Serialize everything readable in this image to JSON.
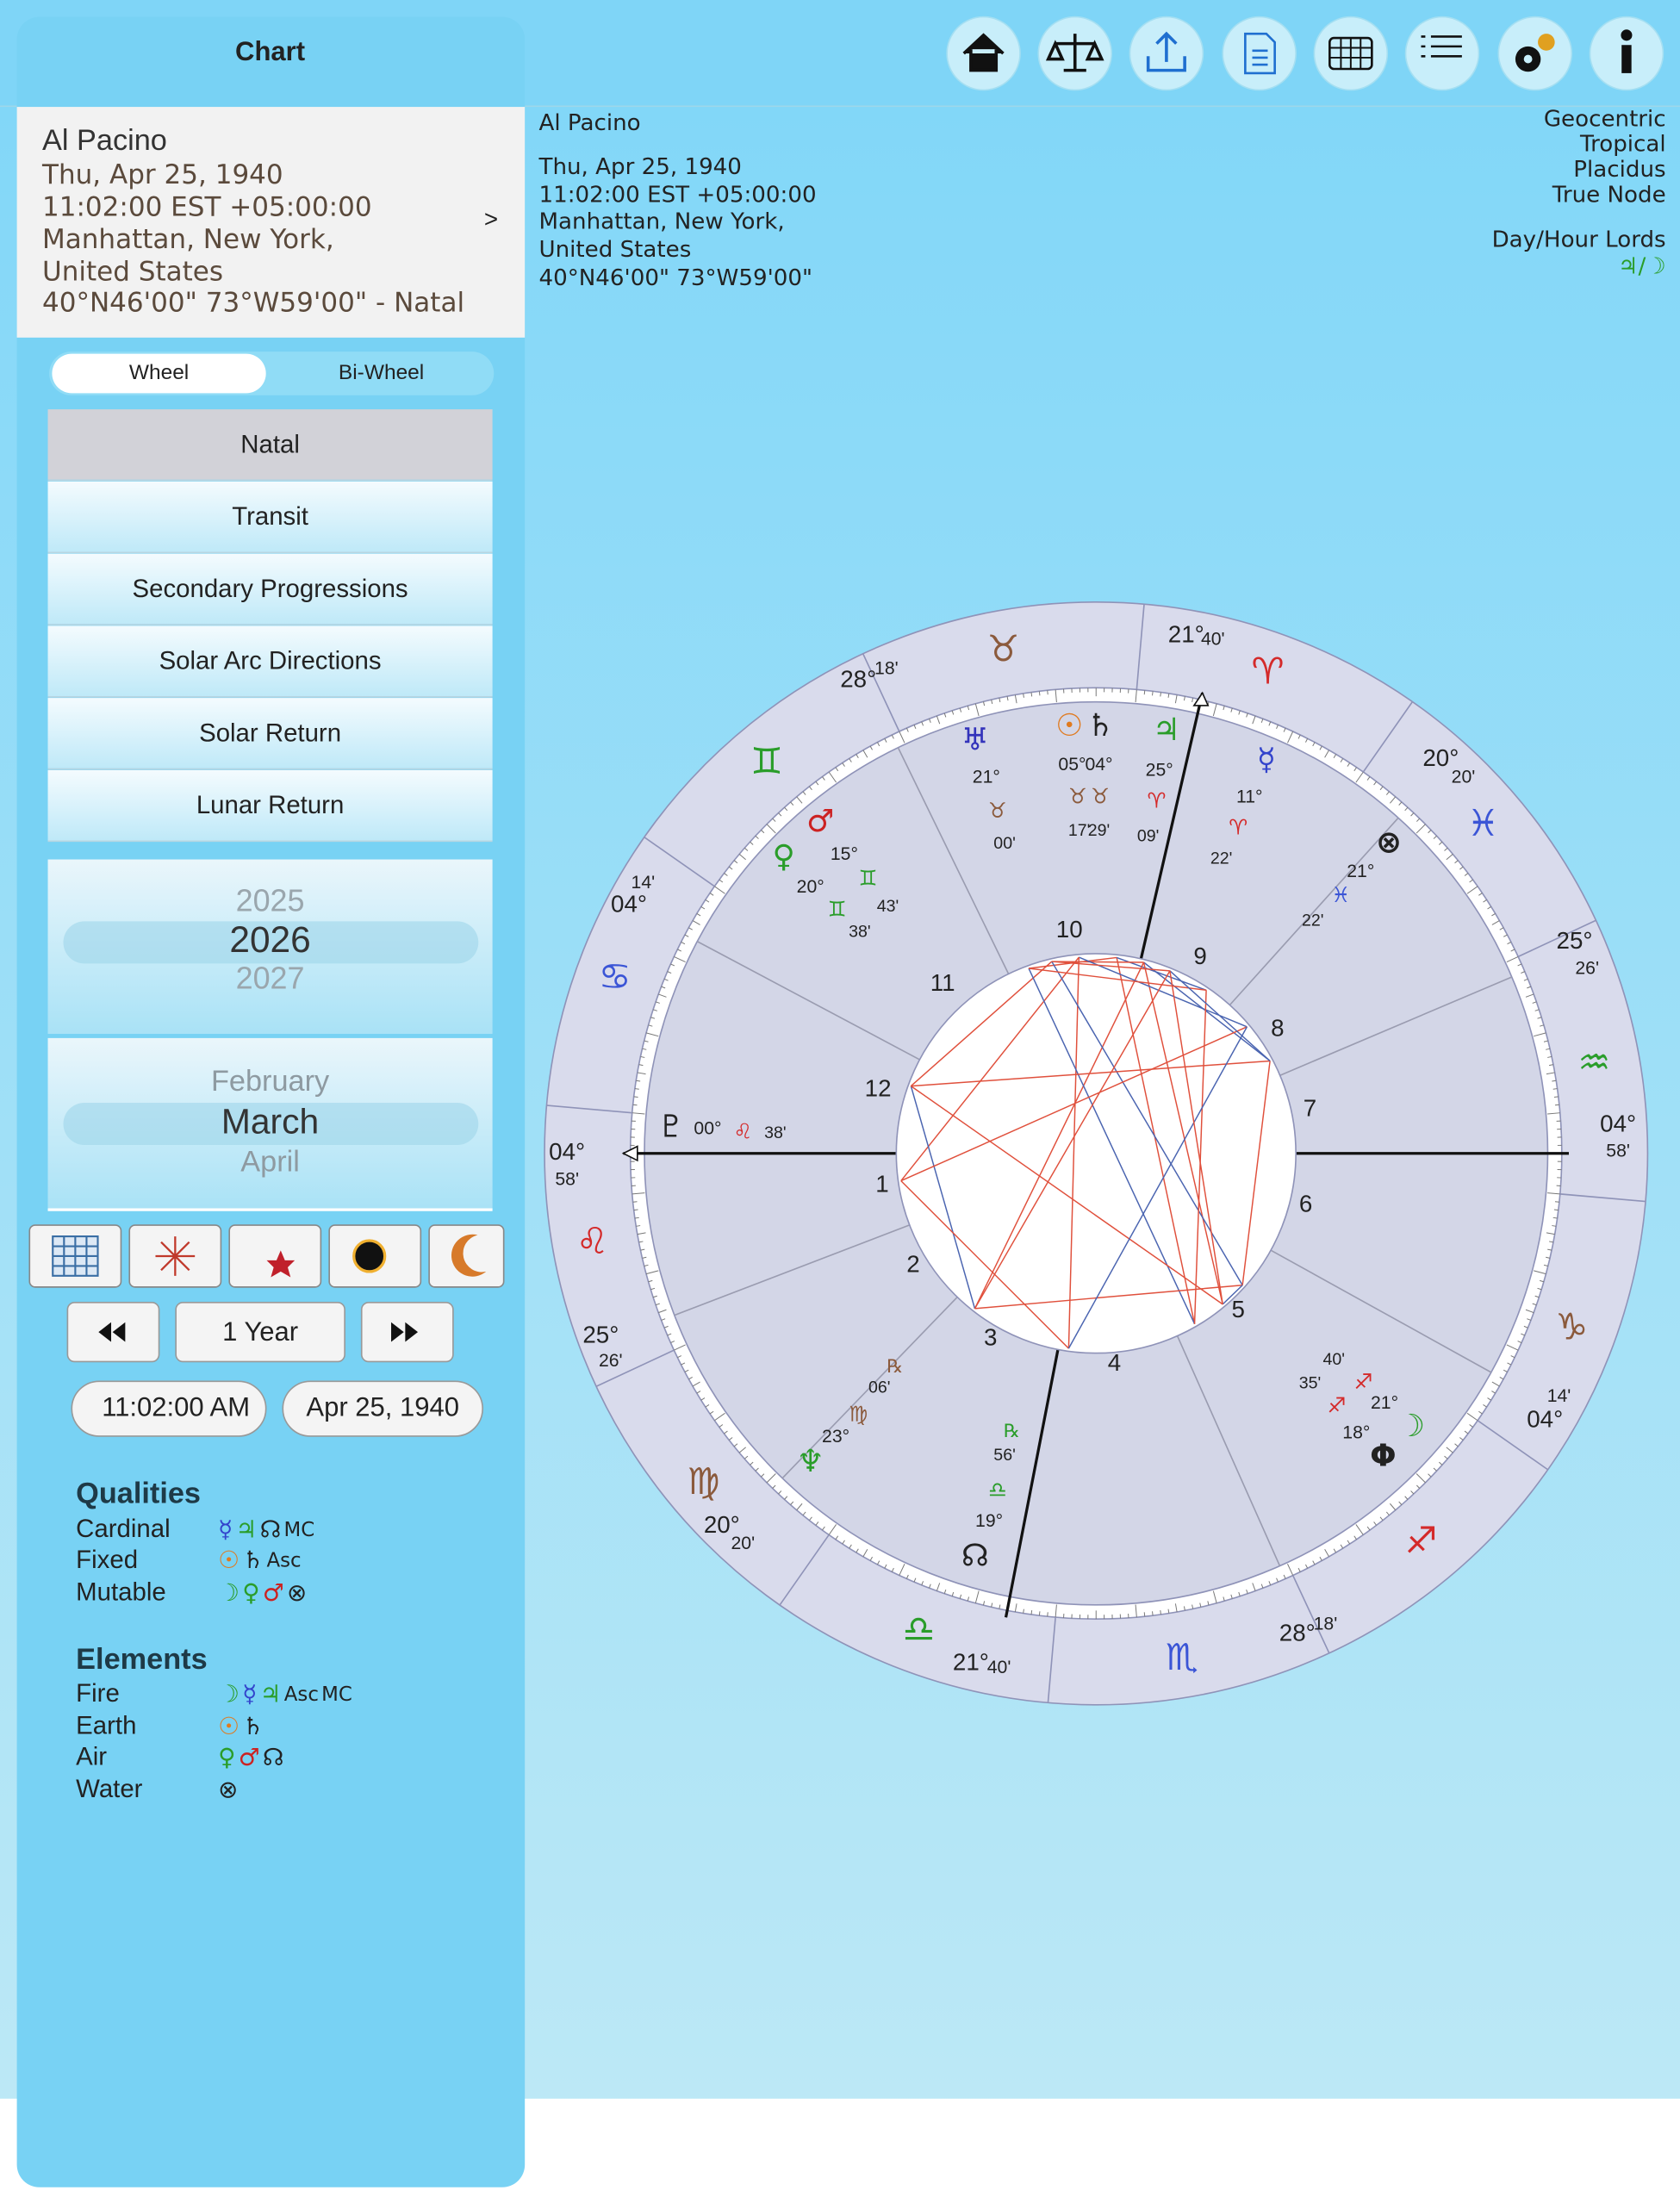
{
  "sidebar": {
    "title": "Chart",
    "profile": {
      "name": "Al Pacino",
      "lines": [
        "Thu, Apr 25, 1940",
        "11:02:00 EST +05:00:00",
        "Manhattan, New York,",
        "United States",
        "40°N46'00\" 73°W59'00\" - Natal"
      ],
      "chevron": ">"
    },
    "wheel_tabs": [
      "Wheel",
      "Bi-Wheel"
    ],
    "chart_types": [
      "Natal",
      "Transit",
      "Secondary Progressions",
      "Solar Arc Directions",
      "Solar Return",
      "Lunar Return"
    ],
    "year_picker": [
      "2025",
      "2026",
      "2027"
    ],
    "month_picker": [
      "February",
      "March",
      "April"
    ],
    "step": "1 Year",
    "time": "11:02:00 AM",
    "date": "Apr 25, 1940",
    "qualities": {
      "title": "Qualities",
      "rows": [
        {
          "label": "Cardinal",
          "symbols": [
            "☿",
            "♃",
            "☊",
            "MC"
          ]
        },
        {
          "label": "Fixed",
          "symbols": [
            "☉",
            "♄",
            "Asc"
          ]
        },
        {
          "label": "Mutable",
          "symbols": [
            "☽",
            "♀",
            "♂",
            "⊗"
          ]
        }
      ]
    },
    "elements": {
      "title": "Elements",
      "rows": [
        {
          "label": "Fire",
          "symbols": [
            "☽",
            "☿",
            "♃",
            "Asc",
            "MC"
          ]
        },
        {
          "label": "Earth",
          "symbols": [
            "☉",
            "♄"
          ]
        },
        {
          "label": "Air",
          "symbols": [
            "♀",
            "♂",
            "☊"
          ]
        },
        {
          "label": "Water",
          "symbols": [
            "⊗"
          ]
        }
      ]
    }
  },
  "header": {
    "lines": [
      "Al Pacino",
      "Thu, Apr 25, 1940",
      "11:02:00 EST +05:00:00",
      "Manhattan, New York,",
      "United States",
      "40°N46'00\" 73°W59'00\""
    ],
    "settings": [
      "Geocentric",
      "Tropical",
      "Placidus",
      "True Node"
    ],
    "lords_title": "Day/Hour Lords",
    "lords": "♃/☽"
  },
  "wheel": {
    "signs": [
      "♈",
      "♉",
      "♊",
      "♋",
      "♌",
      "♍",
      "♎",
      "♏",
      "♐",
      "♑",
      "♒",
      "♓"
    ],
    "cusps": [
      {
        "deg": "21°",
        "min": "40'"
      },
      {
        "deg": "28°",
        "min": "18'"
      },
      {
        "deg": "04°",
        "min": "14'"
      },
      {
        "deg": "04°",
        "min": "58'"
      },
      {
        "deg": "25°",
        "min": "26'"
      },
      {
        "deg": "20°",
        "min": "20'"
      },
      {
        "deg": "21°",
        "min": "40'"
      },
      {
        "deg": "28°",
        "min": "18'"
      },
      {
        "deg": "04°",
        "min": "14'"
      },
      {
        "deg": "04°",
        "min": "58'"
      },
      {
        "deg": "25°",
        "min": "26'"
      },
      {
        "deg": "20°",
        "min": "20'"
      }
    ],
    "houses": [
      "1",
      "2",
      "3",
      "4",
      "5",
      "6",
      "7",
      "8",
      "9",
      "10",
      "11",
      "12"
    ],
    "planets": [
      {
        "glyph": "♅",
        "deg": "21°",
        "sign": "♉",
        "min": "00'"
      },
      {
        "glyph": "☉",
        "deg": "05°",
        "sign": "♉",
        "min": "17'"
      },
      {
        "glyph": "♄",
        "deg": "04°",
        "sign": "♉",
        "min": "29'"
      },
      {
        "glyph": "♃",
        "deg": "25°",
        "sign": "♈",
        "min": "09'"
      },
      {
        "glyph": "☿",
        "deg": "11°",
        "sign": "♈",
        "min": "22'"
      },
      {
        "glyph": "⊗",
        "deg": "21°",
        "sign": "♓",
        "min": "22'"
      },
      {
        "glyph": "♂",
        "deg": "15°",
        "sign": "♊",
        "min": "43'"
      },
      {
        "glyph": "♀",
        "deg": "20°",
        "sign": "♊",
        "min": "38'"
      },
      {
        "glyph": "♇",
        "deg": "00°",
        "sign": "♌",
        "min": "38'"
      },
      {
        "glyph": "♆",
        "deg": "23°",
        "sign": "♍",
        "min": "06'",
        "retro": "℞"
      },
      {
        "glyph": "☊",
        "deg": "19°",
        "sign": "♎",
        "min": "56'",
        "retro": "℞"
      },
      {
        "glyph": "☽",
        "deg": "21°",
        "sign": "♐",
        "min": "40'"
      },
      {
        "glyph": "Φ",
        "deg": "18°",
        "sign": "♐",
        "min": "35'"
      }
    ]
  }
}
